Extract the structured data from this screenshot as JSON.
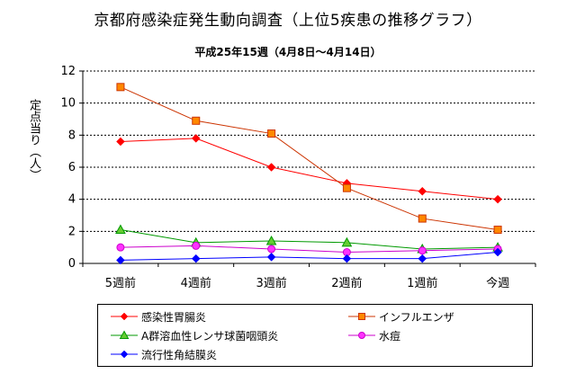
{
  "chart_data": {
    "type": "line",
    "title": "京都府感染症発生動向調査（上位5疾患の推移グラフ）",
    "subtitle": "平成25年15週（4月8日～4月14日）",
    "ylabel": "定点当り（人）",
    "xlabel": "",
    "categories": [
      "5週前",
      "4週前",
      "3週前",
      "2週前",
      "1週前",
      "今週"
    ],
    "ylim": [
      0,
      12
    ],
    "yticks": [
      0,
      2,
      4,
      6,
      8,
      10,
      12
    ],
    "grid": "horizontal dashed",
    "legend_position": "bottom",
    "series": [
      {
        "name": "感染性胃腸炎",
        "color": "#ff0000",
        "marker": "diamond",
        "values": [
          7.6,
          7.8,
          6.0,
          5.0,
          4.5,
          4.0
        ]
      },
      {
        "name": "インフルエンザ",
        "color": "#cc3300",
        "marker": "square",
        "values": [
          11.0,
          8.9,
          8.1,
          4.7,
          2.8,
          2.1
        ]
      },
      {
        "name": "A群溶血性レンサ球菌咽頭炎",
        "color": "#009900",
        "marker": "triangle",
        "values": [
          2.1,
          1.3,
          1.4,
          1.3,
          0.9,
          1.0
        ]
      },
      {
        "name": "水痘",
        "color": "#cc00cc",
        "marker": "circle",
        "values": [
          1.0,
          1.1,
          0.9,
          0.7,
          0.8,
          0.9
        ]
      },
      {
        "name": "流行性角結膜炎",
        "color": "#0000ff",
        "marker": "diamond",
        "values": [
          0.2,
          0.3,
          0.4,
          0.3,
          0.3,
          0.7
        ]
      }
    ]
  }
}
